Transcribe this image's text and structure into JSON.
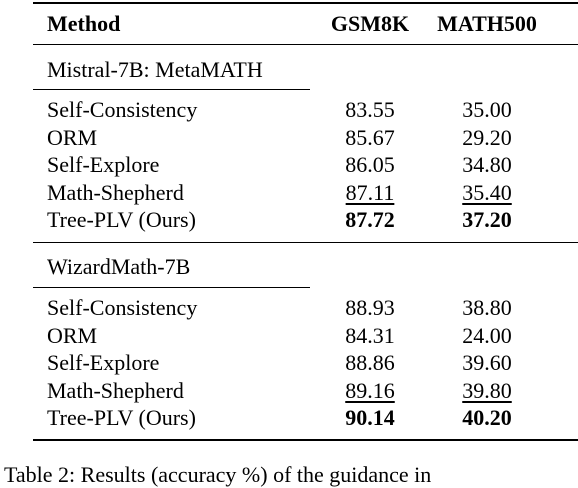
{
  "table": {
    "headers": {
      "method": "Method",
      "gsm8k": "GSM8K",
      "math500": "MATH500"
    },
    "sections": [
      {
        "title": "Mistral-7B: MetaMATH",
        "rows": [
          {
            "method": "Self-Consistency",
            "gsm8k": "83.55",
            "math500": "35.00",
            "gsm8k_style": "",
            "math500_style": ""
          },
          {
            "method": "ORM",
            "gsm8k": "85.67",
            "math500": "29.20",
            "gsm8k_style": "",
            "math500_style": ""
          },
          {
            "method": "Self-Explore",
            "gsm8k": "86.05",
            "math500": "34.80",
            "gsm8k_style": "",
            "math500_style": ""
          },
          {
            "method": "Math-Shepherd",
            "gsm8k": "87.11",
            "math500": "35.40",
            "gsm8k_style": "underline",
            "math500_style": "underline"
          },
          {
            "method": "Tree-PLV (Ours)",
            "gsm8k": "87.72",
            "math500": "37.20",
            "gsm8k_style": "bold",
            "math500_style": "bold"
          }
        ]
      },
      {
        "title": "WizardMath-7B",
        "rows": [
          {
            "method": "Self-Consistency",
            "gsm8k": "88.93",
            "math500": "38.80",
            "gsm8k_style": "",
            "math500_style": ""
          },
          {
            "method": "ORM",
            "gsm8k": "84.31",
            "math500": "24.00",
            "gsm8k_style": "",
            "math500_style": ""
          },
          {
            "method": "Self-Explore",
            "gsm8k": "88.86",
            "math500": "39.60",
            "gsm8k_style": "",
            "math500_style": ""
          },
          {
            "method": "Math-Shepherd",
            "gsm8k": "89.16",
            "math500": "39.80",
            "gsm8k_style": "underline",
            "math500_style": "underline"
          },
          {
            "method": "Tree-PLV (Ours)",
            "gsm8k": "90.14",
            "math500": "40.20",
            "gsm8k_style": "bold",
            "math500_style": "bold"
          }
        ]
      }
    ],
    "caption_fragment": "Table 2: Results (accuracy %) of the guidance in"
  }
}
